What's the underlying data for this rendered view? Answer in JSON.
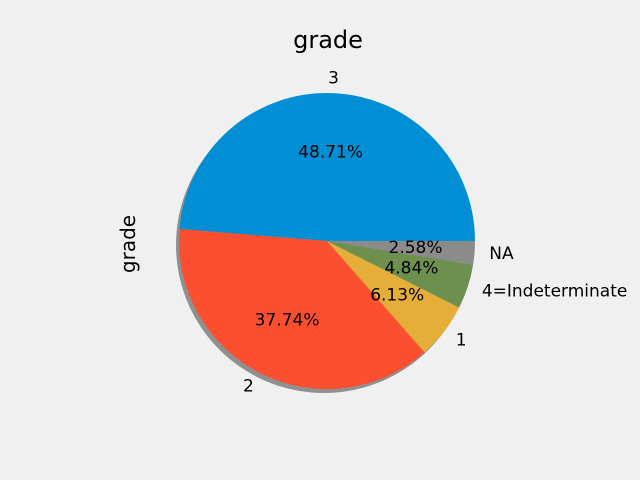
{
  "chart_data": {
    "type": "pie",
    "title": "grade",
    "ylabel": "grade",
    "start_angle_deg": 0,
    "direction": "counterclockwise",
    "shadow": true,
    "slices": [
      {
        "label": "3",
        "value": 48.71,
        "pct_label": "48.71%",
        "color": "#008fd5"
      },
      {
        "label": "2",
        "value": 37.74,
        "pct_label": "37.74%",
        "color": "#fc4f30"
      },
      {
        "label": "1",
        "value": 6.13,
        "pct_label": "6.13%",
        "color": "#e5ae38"
      },
      {
        "label": "4=Indeterminate",
        "value": 4.84,
        "pct_label": "4.84%",
        "color": "#6d904f"
      },
      {
        "label": "NA",
        "value": 2.58,
        "pct_label": "2.58%",
        "color": "#8b8b8b"
      }
    ]
  }
}
